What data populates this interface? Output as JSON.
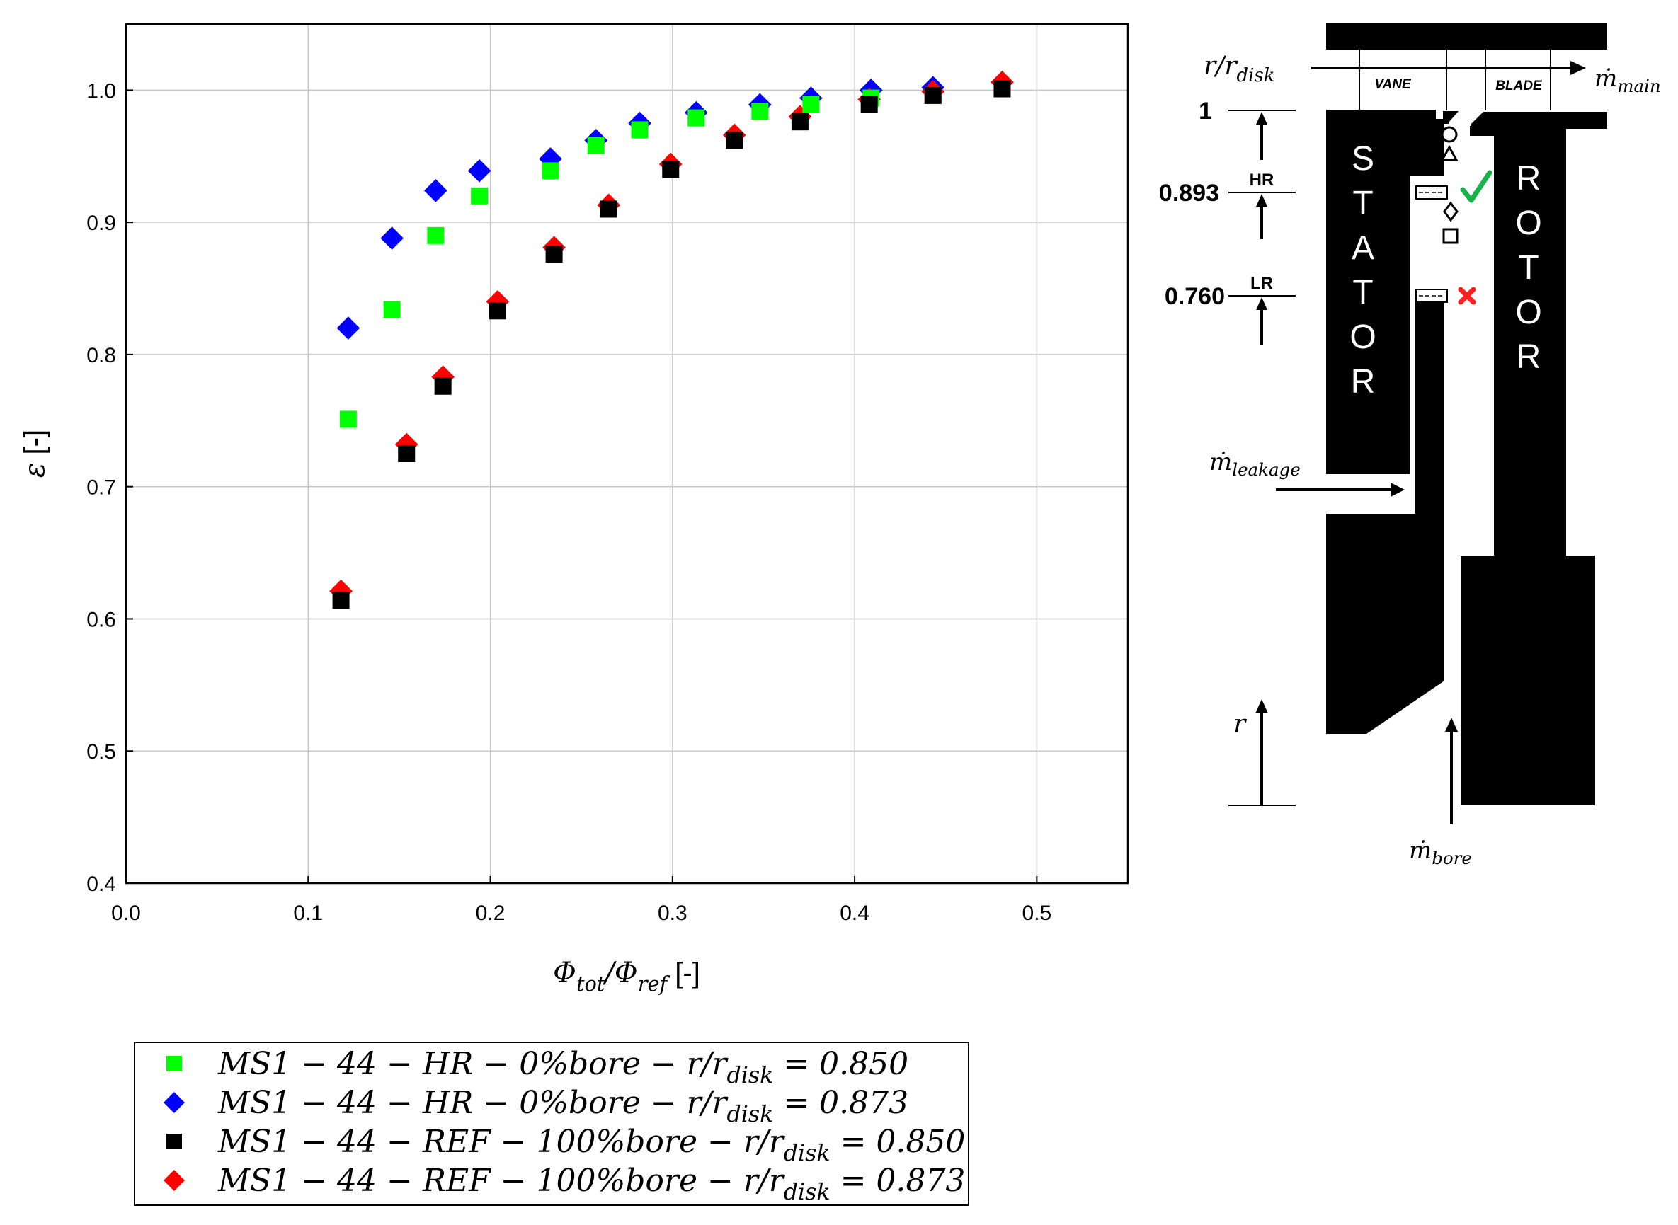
{
  "chart_data": {
    "type": "scatter",
    "xlabel": {
      "symbol": "Φ",
      "sub1": "tot",
      "sep": "/Φ",
      "sub2": "ref",
      "unit": " [-]"
    },
    "ylabel": {
      "symbol": "ε",
      "unit": " [-]"
    },
    "xlim": [
      0.0,
      0.55
    ],
    "ylim": [
      0.4,
      1.05
    ],
    "xticks": [
      "0.0",
      "0.1",
      "0.2",
      "0.3",
      "0.4",
      "0.5"
    ],
    "yticks": [
      "0.4",
      "0.5",
      "0.6",
      "0.7",
      "0.8",
      "0.9",
      "1.0"
    ],
    "grid": true,
    "series": [
      {
        "name": "MS1 − 44 − HR − 0%bore − r/r_disk = 0.850",
        "label": {
          "main": "MS1 − 44 − HR − 0%bore − r/r",
          "sub": "disk",
          "tail": " = 0.850"
        },
        "marker": "square",
        "color": "#00ff00",
        "x": [
          0.122,
          0.146,
          0.17,
          0.194,
          0.233,
          0.258,
          0.282,
          0.313,
          0.348,
          0.376,
          0.409,
          0.443
        ],
        "y": [
          0.751,
          0.834,
          0.89,
          0.92,
          0.939,
          0.958,
          0.97,
          0.979,
          0.984,
          0.989,
          0.994,
          0.996
        ]
      },
      {
        "name": "MS1 − 44 − HR − 0%bore − r/r_disk = 0.873",
        "label": {
          "main": "MS1 − 44 − HR − 0%bore − r/r",
          "sub": "disk",
          "tail": " = 0.873"
        },
        "marker": "diamond",
        "color": "#0000ff",
        "x": [
          0.122,
          0.146,
          0.17,
          0.194,
          0.233,
          0.258,
          0.282,
          0.313,
          0.348,
          0.376,
          0.409,
          0.443
        ],
        "y": [
          0.82,
          0.888,
          0.924,
          0.939,
          0.948,
          0.962,
          0.975,
          0.983,
          0.989,
          0.994,
          1.0,
          1.002
        ]
      },
      {
        "name": "MS1 − 44 − REF − 100%bore − r/r_disk = 0.850",
        "label": {
          "main": "MS1 − 44 − REF − 100%bore − r/r",
          "sub": "disk",
          "tail": " = 0.850"
        },
        "marker": "square",
        "color": "#000000",
        "x": [
          0.118,
          0.154,
          0.174,
          0.204,
          0.235,
          0.265,
          0.299,
          0.334,
          0.37,
          0.408,
          0.443,
          0.481
        ],
        "y": [
          0.614,
          0.725,
          0.776,
          0.833,
          0.876,
          0.91,
          0.94,
          0.962,
          0.976,
          0.989,
          0.996,
          1.001
        ]
      },
      {
        "name": "MS1 − 44 − REF − 100%bore − r/r_disk = 0.873",
        "label": {
          "main": "MS1 − 44 − REF − 100%bore − r/r",
          "sub": "disk",
          "tail": " = 0.873"
        },
        "marker": "diamond",
        "color": "#ff0000",
        "x": [
          0.118,
          0.154,
          0.174,
          0.204,
          0.235,
          0.265,
          0.299,
          0.334,
          0.37,
          0.408,
          0.443,
          0.481
        ],
        "y": [
          0.621,
          0.732,
          0.783,
          0.84,
          0.881,
          0.913,
          0.944,
          0.966,
          0.98,
          0.993,
          0.999,
          1.006
        ]
      }
    ]
  },
  "diagram": {
    "rr_label": {
      "main": "r/r",
      "sub": "disk"
    },
    "level_values": [
      "1",
      "0.893",
      "0.760"
    ],
    "hr_label": "HR",
    "lr_label": "LR",
    "vane_label": "VANE",
    "blade_label": "BLADE",
    "stator_letters": [
      "S",
      "T",
      "A",
      "T",
      "O",
      "R"
    ],
    "rotor_letters": [
      "R",
      "O",
      "T",
      "O",
      "R"
    ],
    "m_main": {
      "main": "ṁ",
      "sub": "main"
    },
    "m_leakage": {
      "main": "ṁ",
      "sub": "leakage"
    },
    "m_bore": {
      "main": "ṁ",
      "sub": "bore"
    },
    "r_axis": "r",
    "check_color": "#19b24b",
    "cross_color": "#ff2020",
    "label_red": "#ff0000"
  }
}
